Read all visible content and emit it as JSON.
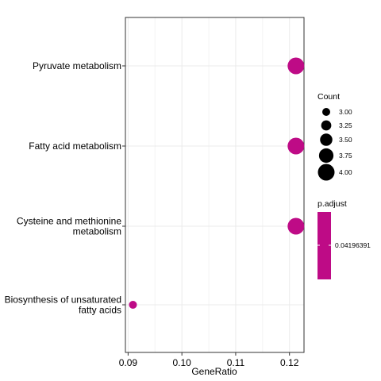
{
  "chart_data": {
    "type": "scatter",
    "title": "",
    "xlabel": "GeneRatio",
    "ylabel": "",
    "xlim": [
      0.0895,
      0.1227
    ],
    "x_ticks": [
      0.09,
      0.1,
      0.11,
      0.12
    ],
    "x_tick_labels": [
      "0.09",
      "0.10",
      "0.11",
      "0.12"
    ],
    "categories": [
      [
        "Pyruvate metabolism"
      ],
      [
        "Fatty acid metabolism"
      ],
      [
        "Cysteine and methionine",
        "metabolism"
      ],
      [
        "Biosynthesis of unsaturated",
        "fatty acids"
      ]
    ],
    "points": [
      {
        "category_index": 0,
        "x": 0.1212,
        "count": 4,
        "p_adjust": 0.04196391
      },
      {
        "category_index": 1,
        "x": 0.1212,
        "count": 4,
        "p_adjust": 0.04196391
      },
      {
        "category_index": 2,
        "x": 0.1212,
        "count": 4,
        "p_adjust": 0.04196391
      },
      {
        "category_index": 3,
        "x": 0.0909,
        "count": 3,
        "p_adjust": 0.04196391
      }
    ],
    "point_color": "#BE0B86",
    "grid": true,
    "legend_position": "right",
    "size_legend": {
      "title": "Count",
      "entries": [
        {
          "value": 3.0,
          "label": "3.00"
        },
        {
          "value": 3.25,
          "label": "3.25"
        },
        {
          "value": 3.5,
          "label": "3.50"
        },
        {
          "value": 3.75,
          "label": "3.75"
        },
        {
          "value": 4.0,
          "label": "4.00"
        }
      ]
    },
    "color_legend": {
      "title": "p.adjust",
      "label": "0.04196391",
      "color": "#BE0B86"
    }
  }
}
